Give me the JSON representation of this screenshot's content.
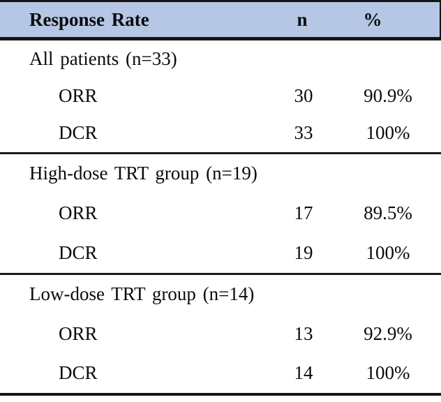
{
  "table": {
    "header": {
      "label": "Response Rate",
      "n": "n",
      "percent": "%"
    },
    "sections": [
      {
        "label": "All patients (n=33)",
        "rows": [
          {
            "name": "ORR",
            "n": "30",
            "pct": "90.9%"
          },
          {
            "name": "DCR",
            "n": "33",
            "pct": "100%"
          }
        ]
      },
      {
        "label": "High-dose TRT group (n=19)",
        "rows": [
          {
            "name": "ORR",
            "n": "17",
            "pct": "89.5%"
          },
          {
            "name": "DCR",
            "n": "19",
            "pct": "100%"
          }
        ]
      },
      {
        "label": "Low-dose TRT group (n=14)",
        "rows": [
          {
            "name": "ORR",
            "n": "13",
            "pct": "92.9%"
          },
          {
            "name": "DCR",
            "n": "14",
            "pct": "100%"
          }
        ]
      }
    ]
  },
  "colors": {
    "header_background": "#b5c7e5",
    "border": "#151515",
    "text": "#0b0b0b"
  }
}
